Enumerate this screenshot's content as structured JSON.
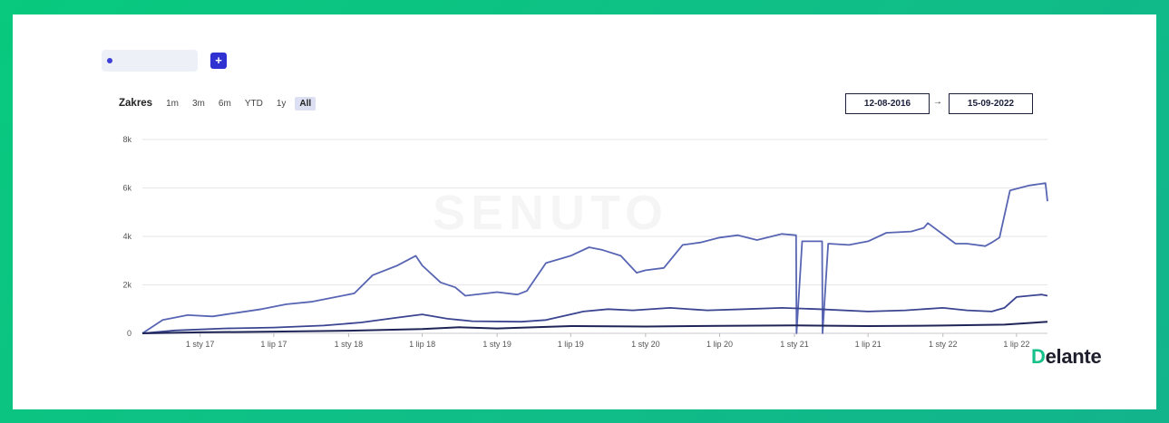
{
  "toolbar": {
    "add_label": "+"
  },
  "range": {
    "label": "Zakres",
    "options": [
      "1m",
      "3m",
      "6m",
      "YTD",
      "1y",
      "All"
    ],
    "active": "All"
  },
  "dates": {
    "from": "12-08-2016",
    "arrow": "→",
    "to": "15-09-2022"
  },
  "watermark": "SENUTO",
  "logo": {
    "first": "D",
    "rest": "elante"
  },
  "colors": {
    "series_top": "#5865b3",
    "series_mid": "#3a4490",
    "series_low": "#1f2457",
    "accent": "#2f31d0",
    "frame": "#0cc583"
  },
  "chart_data": {
    "type": "line",
    "ylim": [
      0,
      8000
    ],
    "yticks": [
      0,
      2000,
      4000,
      6000,
      8000
    ],
    "ytick_labels": [
      "0",
      "2k",
      "4k",
      "6k",
      "8k"
    ],
    "xlim": [
      "2016-08-12",
      "2022-09-15"
    ],
    "xticks": [
      {
        "date": "2017-01-01",
        "label": "1 sty 17"
      },
      {
        "date": "2017-07-01",
        "label": "1 lip 17"
      },
      {
        "date": "2018-01-01",
        "label": "1 sty 18"
      },
      {
        "date": "2018-07-01",
        "label": "1 lip 18"
      },
      {
        "date": "2019-01-01",
        "label": "1 sty 19"
      },
      {
        "date": "2019-07-01",
        "label": "1 lip 19"
      },
      {
        "date": "2020-01-01",
        "label": "1 sty 20"
      },
      {
        "date": "2020-07-01",
        "label": "1 lip 20"
      },
      {
        "date": "2021-01-01",
        "label": "1 sty 21"
      },
      {
        "date": "2021-07-01",
        "label": "1 lip 21"
      },
      {
        "date": "2022-01-01",
        "label": "1 sty 22"
      },
      {
        "date": "2022-07-01",
        "label": "1 lip 22"
      }
    ],
    "grid": true,
    "series": [
      {
        "x": [
          "2016-08-12",
          "2016-10-01",
          "2016-12-01",
          "2017-02-01",
          "2017-04-01",
          "2017-06-01",
          "2017-08-01",
          "2017-10-01",
          "2017-12-01",
          "2018-01-15",
          "2018-03-01",
          "2018-05-01",
          "2018-06-15",
          "2018-07-01",
          "2018-08-15",
          "2018-09-20",
          "2018-10-15",
          "2019-01-01",
          "2019-02-20",
          "2019-03-15",
          "2019-05-01",
          "2019-07-01",
          "2019-08-15",
          "2019-09-15",
          "2019-11-01",
          "2019-12-10",
          "2020-01-01",
          "2020-02-15",
          "2020-04-01",
          "2020-05-15",
          "2020-07-01",
          "2020-08-15",
          "2020-10-01",
          "2020-12-01",
          "2021-01-05",
          "2021-01-06",
          "2021-01-20",
          "2021-03-10",
          "2021-03-11",
          "2021-03-25",
          "2021-05-15",
          "2021-07-01",
          "2021-08-15",
          "2021-10-15",
          "2021-11-15",
          "2021-11-25",
          "2022-02-01",
          "2022-03-01",
          "2022-04-15",
          "2022-05-01",
          "2022-05-20",
          "2022-06-15",
          "2022-08-01",
          "2022-09-10",
          "2022-09-15"
        ],
        "values": [
          0,
          550,
          750,
          700,
          850,
          1000,
          1200,
          1300,
          1500,
          1650,
          2400,
          2800,
          3200,
          2800,
          2100,
          1900,
          1550,
          1700,
          1600,
          1750,
          2900,
          3200,
          3550,
          3450,
          3200,
          2500,
          2600,
          2700,
          3650,
          3750,
          3950,
          4050,
          3850,
          4100,
          4050,
          0,
          3800,
          3800,
          0,
          3700,
          3650,
          3800,
          4150,
          4200,
          4350,
          4550,
          3700,
          3700,
          3600,
          3750,
          3950,
          5900,
          6100,
          6200,
          5450
        ]
      },
      {
        "x": [
          "2016-08-12",
          "2016-11-01",
          "2017-03-01",
          "2017-07-01",
          "2017-11-01",
          "2018-02-01",
          "2018-05-01",
          "2018-07-01",
          "2018-09-01",
          "2018-11-01",
          "2019-03-01",
          "2019-05-01",
          "2019-08-01",
          "2019-10-01",
          "2019-12-01",
          "2020-03-01",
          "2020-06-01",
          "2020-09-01",
          "2020-12-01",
          "2021-03-01",
          "2021-07-01",
          "2021-10-01",
          "2022-01-01",
          "2022-03-01",
          "2022-05-01",
          "2022-06-01",
          "2022-07-01",
          "2022-09-01",
          "2022-09-15"
        ],
        "values": [
          0,
          120,
          200,
          240,
          320,
          450,
          650,
          780,
          600,
          500,
          480,
          550,
          900,
          1000,
          950,
          1050,
          950,
          1000,
          1050,
          1000,
          900,
          950,
          1050,
          950,
          900,
          1050,
          1500,
          1600,
          1550
        ]
      },
      {
        "x": [
          "2016-08-12",
          "2017-01-01",
          "2017-07-01",
          "2018-01-01",
          "2018-07-01",
          "2018-10-01",
          "2019-01-01",
          "2019-07-01",
          "2020-01-01",
          "2020-07-01",
          "2021-01-01",
          "2021-07-01",
          "2022-01-01",
          "2022-06-01",
          "2022-09-15"
        ],
        "values": [
          0,
          40,
          70,
          110,
          180,
          250,
          200,
          300,
          280,
          310,
          330,
          300,
          320,
          360,
          480
        ]
      }
    ]
  }
}
